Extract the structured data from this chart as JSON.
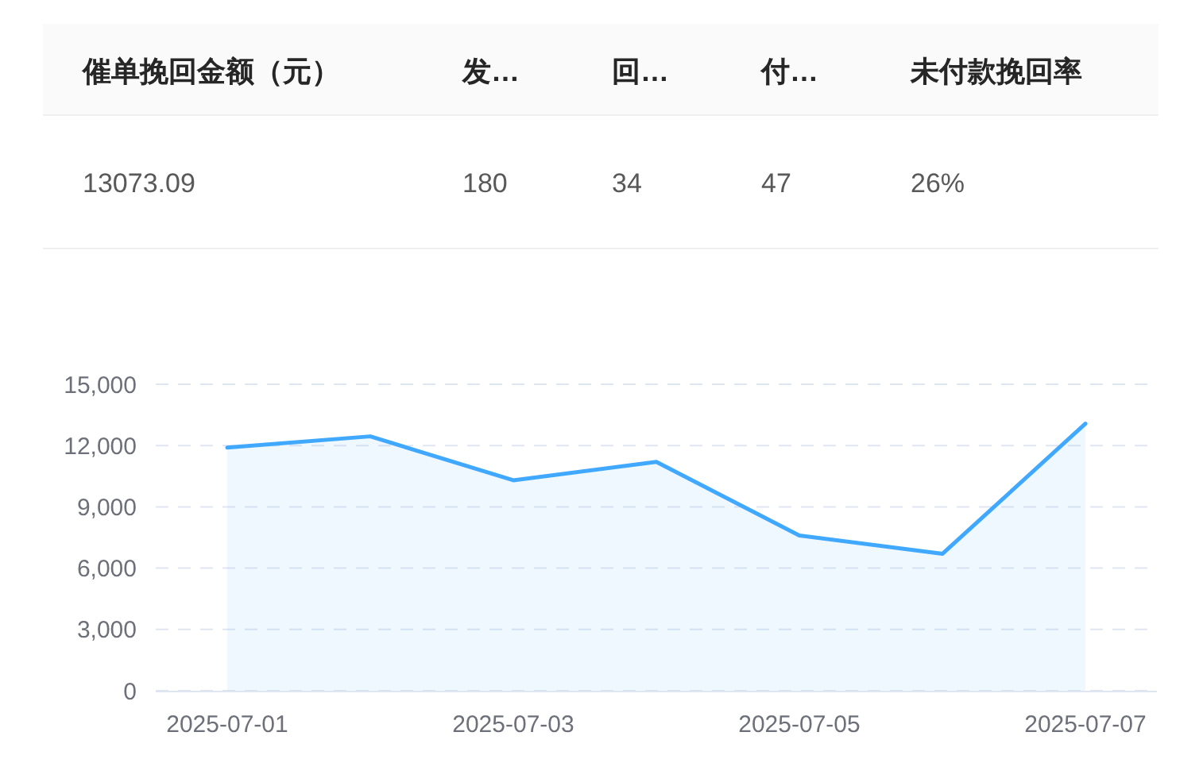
{
  "chart_data": [
    {
      "type": "other",
      "categories": [
        "催单挽回金额（元）",
        "发…",
        "回…",
        "付…",
        "未付款挽回率"
      ],
      "value_labels": [
        "13073.09",
        "180",
        "34",
        "47",
        "26%"
      ]
    },
    {
      "type": "area",
      "categories": [
        "2025-07-01",
        null,
        "2025-07-03",
        null,
        "2025-07-05",
        null,
        "2025-07-07"
      ],
      "series": [
        {
          "color": "#40a9ff",
          "values": [
            11900,
            12450,
            10300,
            11200,
            7600,
            6700,
            13070
          ]
        }
      ],
      "ylim": [
        0,
        15000
      ],
      "yticks": [
        0,
        {
          "value": 3000,
          "label": "3,000"
        },
        {
          "value": 6000,
          "label": "6,000"
        },
        {
          "value": 9000,
          "label": "9,000"
        },
        {
          "value": 12000,
          "label": "12,000"
        },
        {
          "value": 15000,
          "label": "15,000"
        }
      ],
      "grid": "y"
    }
  ]
}
